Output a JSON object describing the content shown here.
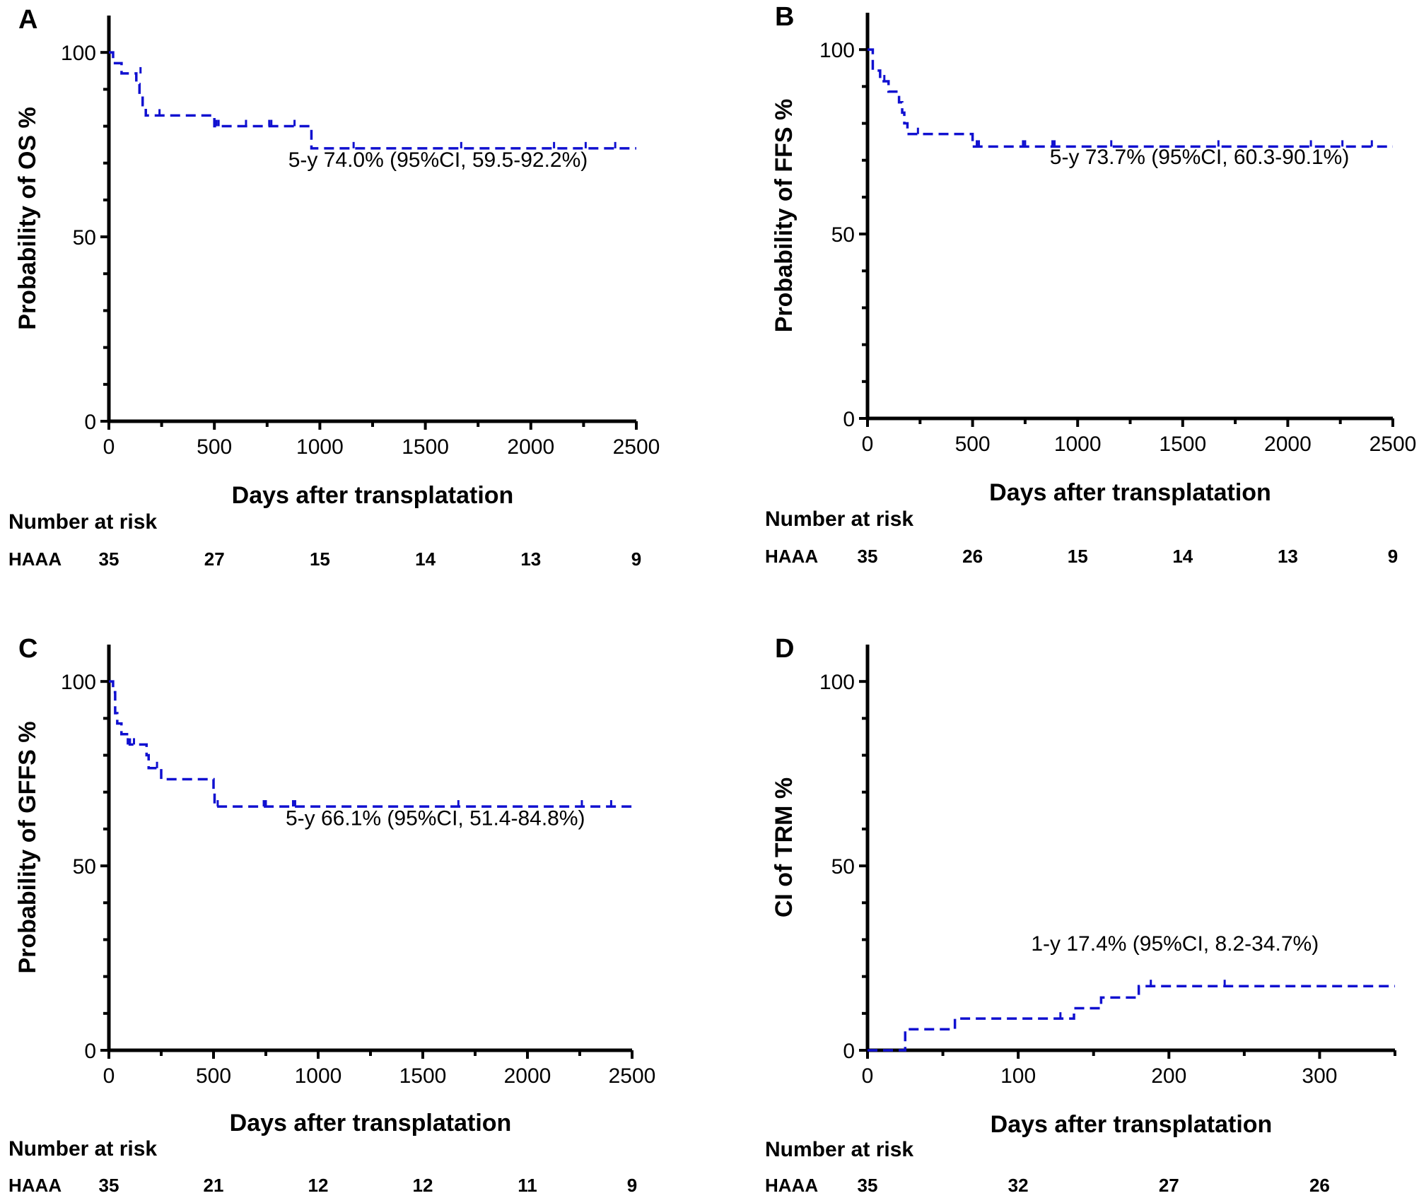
{
  "chart_data": [
    {
      "id": "A",
      "type": "line",
      "panel_label": "A",
      "title": "",
      "xlabel": "Days after transplatation",
      "ylabel": "Probability of OS %",
      "xlim": [
        0,
        2500
      ],
      "ylim": [
        0,
        110
      ],
      "x_ticks": [
        0,
        500,
        1000,
        1500,
        2000,
        2500
      ],
      "x_tick_labels": [
        "0",
        "500",
        "1000",
        "1500",
        "2000",
        "2500"
      ],
      "y_ticks": [
        0,
        50,
        100
      ],
      "y_tick_labels": [
        "0",
        "50",
        "100"
      ],
      "annotation": "5-y 74.0% (95%CI, 59.5-92.2%)",
      "annotation_anchor": [
        1560,
        69
      ],
      "series": [
        {
          "name": "HAAA",
          "color": "#1010d0",
          "steps": [
            [
              0,
              100
            ],
            [
              20,
              97.1
            ],
            [
              60,
              94.3
            ],
            [
              130,
              91.4
            ],
            [
              145,
              88.6
            ],
            [
              160,
              85.7
            ],
            [
              175,
              82.9
            ],
            [
              500,
              80.0
            ],
            [
              960,
              74.0
            ],
            [
              2500,
              74.0
            ]
          ],
          "censored": [
            [
              150,
              94.3
            ],
            [
              240,
              82.9
            ],
            [
              510,
              80
            ],
            [
              520,
              80
            ],
            [
              650,
              80
            ],
            [
              760,
              80
            ],
            [
              770,
              80
            ],
            [
              880,
              80
            ],
            [
              1160,
              74
            ],
            [
              1670,
              74
            ],
            [
              2110,
              74
            ],
            [
              2260,
              74
            ],
            [
              2400,
              74
            ]
          ]
        }
      ],
      "risk_table": {
        "title": "Number at risk",
        "group": "HAAA",
        "at": [
          0,
          500,
          1000,
          1500,
          2000,
          2500
        ],
        "values": [
          "35",
          "27",
          "15",
          "14",
          "13",
          "9"
        ]
      }
    },
    {
      "id": "B",
      "type": "line",
      "panel_label": "B",
      "title": "",
      "xlabel": "Days after transplatation",
      "ylabel": "Probability of FFS %",
      "xlim": [
        0,
        2500
      ],
      "ylim": [
        0,
        110
      ],
      "x_ticks": [
        0,
        500,
        1000,
        1500,
        2000,
        2500
      ],
      "x_tick_labels": [
        "0",
        "500",
        "1000",
        "1500",
        "2000",
        "2500"
      ],
      "y_ticks": [
        0,
        50,
        100
      ],
      "y_tick_labels": [
        "0",
        "50",
        "100"
      ],
      "annotation": "5-y 73.7% (95%CI, 60.3-90.1%)",
      "annotation_anchor": [
        1580,
        69
      ],
      "series": [
        {
          "name": "HAAA",
          "color": "#1010d0",
          "steps": [
            [
              0,
              100
            ],
            [
              25,
              94.3
            ],
            [
              60,
              91.4
            ],
            [
              100,
              88.6
            ],
            [
              150,
              85.7
            ],
            [
              165,
              82.9
            ],
            [
              175,
              80.0
            ],
            [
              190,
              77.1
            ],
            [
              500,
              73.7
            ],
            [
              2500,
              73.7
            ]
          ],
          "censored": [
            [
              80,
              91.4
            ],
            [
              240,
              77.1
            ],
            [
              520,
              73.7
            ],
            [
              530,
              73.7
            ],
            [
              740,
              73.7
            ],
            [
              750,
              73.7
            ],
            [
              880,
              73.7
            ],
            [
              890,
              73.7
            ],
            [
              1160,
              73.7
            ],
            [
              1670,
              73.7
            ],
            [
              2110,
              73.7
            ],
            [
              2260,
              73.7
            ],
            [
              2400,
              73.7
            ]
          ]
        }
      ],
      "risk_table": {
        "title": "Number at risk",
        "group": "HAAA",
        "at": [
          0,
          500,
          1000,
          1500,
          2000,
          2500
        ],
        "values": [
          "35",
          "26",
          "15",
          "14",
          "13",
          "9"
        ]
      }
    },
    {
      "id": "C",
      "type": "line",
      "panel_label": "C",
      "title": "",
      "xlabel": "Days after transplatation",
      "ylabel": "Probability of GFFS %",
      "xlim": [
        0,
        2500
      ],
      "ylim": [
        0,
        110
      ],
      "x_ticks": [
        0,
        500,
        1000,
        1500,
        2000,
        2500
      ],
      "x_tick_labels": [
        "0",
        "500",
        "1000",
        "1500",
        "2000",
        "2500"
      ],
      "y_ticks": [
        0,
        50,
        100
      ],
      "y_tick_labels": [
        "0",
        "50",
        "100"
      ],
      "annotation": "5-y 66.1% (95%CI, 51.4-84.8%)",
      "annotation_anchor": [
        1560,
        61
      ],
      "series": [
        {
          "name": "HAAA",
          "color": "#1010d0",
          "steps": [
            [
              0,
              100
            ],
            [
              20,
              97.1
            ],
            [
              30,
              91.4
            ],
            [
              40,
              88.6
            ],
            [
              60,
              85.7
            ],
            [
              100,
              82.9
            ],
            [
              180,
              80.0
            ],
            [
              190,
              76.5
            ],
            [
              250,
              73.5
            ],
            [
              500,
              70.0
            ],
            [
              505,
              66.1
            ],
            [
              2500,
              66.1
            ]
          ],
          "censored": [
            [
              90,
              82.9
            ],
            [
              120,
              82.9
            ],
            [
              230,
              76.5
            ],
            [
              520,
              66.1
            ],
            [
              740,
              66.1
            ],
            [
              750,
              66.1
            ],
            [
              880,
              66.1
            ],
            [
              890,
              66.1
            ],
            [
              1670,
              66.1
            ],
            [
              2260,
              66.1
            ],
            [
              2400,
              66.1
            ]
          ]
        }
      ],
      "risk_table": {
        "title": "Number at risk",
        "group": "HAAA",
        "at": [
          0,
          500,
          1000,
          1500,
          2000,
          2500
        ],
        "values": [
          "35",
          "21",
          "12",
          "12",
          "11",
          "9"
        ]
      }
    },
    {
      "id": "D",
      "type": "line",
      "panel_label": "D",
      "title": "",
      "xlabel": "Days after transplatation",
      "ylabel": "CI of TRM %",
      "xlim": [
        0,
        350
      ],
      "ylim": [
        0,
        110
      ],
      "x_ticks": [
        0,
        100,
        200,
        300
      ],
      "x_tick_labels": [
        "0",
        "100",
        "200",
        "300"
      ],
      "y_ticks": [
        0,
        50,
        100
      ],
      "y_tick_labels": [
        "0",
        "50",
        "100"
      ],
      "annotation": "1-y 17.4% (95%CI, 8.2-34.7%)",
      "annotation_anchor": [
        204,
        27
      ],
      "series": [
        {
          "name": "HAAA",
          "color": "#1010d0",
          "steps": [
            [
              0,
              0
            ],
            [
              25,
              5.7
            ],
            [
              58,
              8.6
            ],
            [
              137,
              11.4
            ],
            [
              155,
              14.3
            ],
            [
              180,
              17.4
            ],
            [
              350,
              17.4
            ]
          ],
          "censored": [
            [
              128,
              8.6
            ],
            [
              188,
              17.4
            ],
            [
              237,
              17.4
            ]
          ]
        }
      ],
      "risk_table": {
        "title": "Number at risk",
        "group": "HAAA",
        "at": [
          0,
          100,
          200,
          300
        ],
        "values": [
          "35",
          "32",
          "27",
          "26"
        ]
      }
    }
  ]
}
